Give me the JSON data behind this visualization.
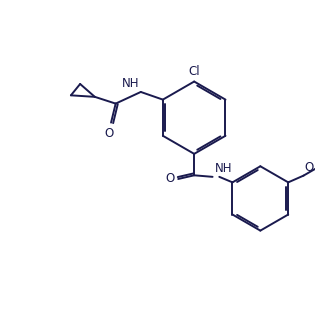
{
  "bg_color": "#ffffff",
  "line_color": "#1a1a4e",
  "figsize": [
    3.24,
    3.12
  ],
  "dpi": 100,
  "lw": 1.4,
  "font_size": 8.5,
  "xlim": [
    0,
    10
  ],
  "ylim": [
    0,
    10
  ]
}
